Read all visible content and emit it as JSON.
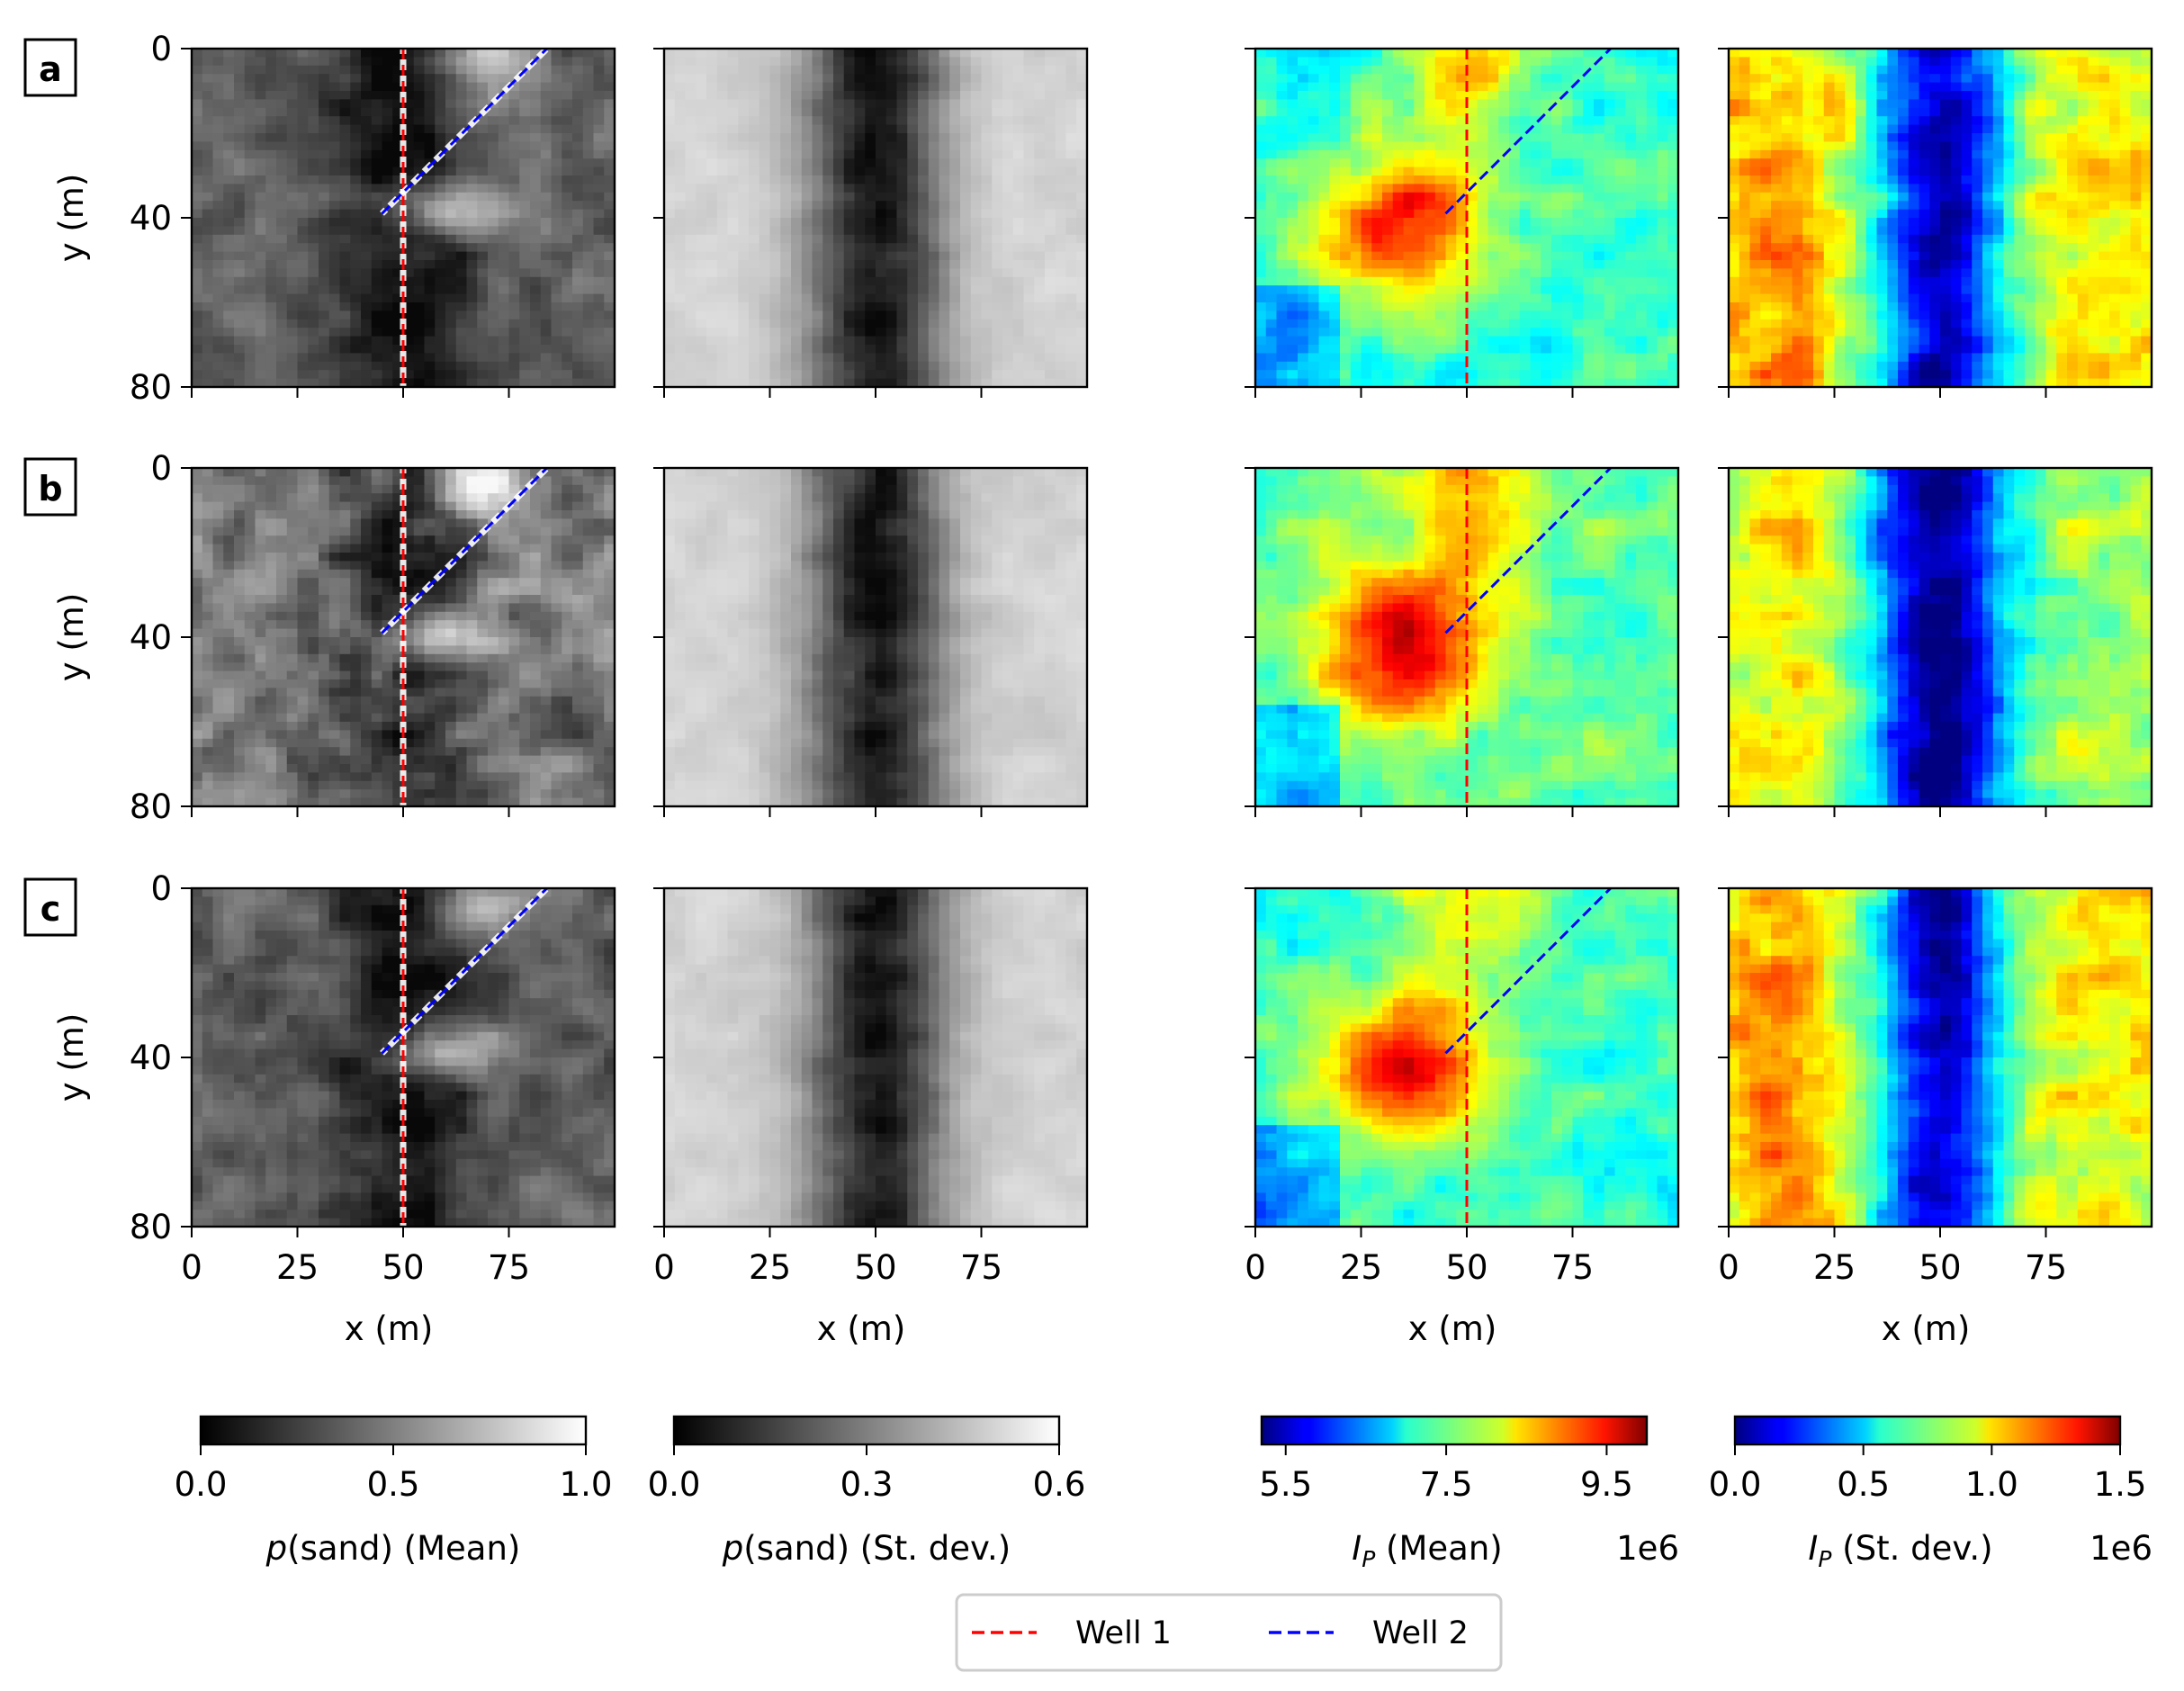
{
  "figure": {
    "rows": [
      {
        "label": "a"
      },
      {
        "label": "b"
      },
      {
        "label": "c"
      }
    ],
    "x_axis": {
      "label": "x (m)",
      "ticks": [
        0,
        25,
        50,
        75
      ],
      "range": [
        0,
        100
      ]
    },
    "y_axis": {
      "label": "y (m)",
      "ticks": [
        0,
        40,
        80
      ],
      "range": [
        0,
        80
      ]
    },
    "panel_columns": [
      {
        "name": "p(sand) Mean",
        "colormap": "gray"
      },
      {
        "name": "p(sand) St. dev.",
        "colormap": "gray"
      },
      {
        "name": "IP Mean",
        "colormap": "jet"
      },
      {
        "name": "IP St. dev.",
        "colormap": "jet"
      }
    ],
    "colorbars": [
      {
        "label_italic": "p",
        "label_rest": "(sand) (Mean)",
        "ticks": [
          "0.0",
          "0.5",
          "1.0"
        ],
        "range": [
          0,
          1
        ],
        "colormap": "gray",
        "offset_text": ""
      },
      {
        "label_italic": "p",
        "label_rest": "(sand) (St. dev.)",
        "ticks": [
          "0.0",
          "0.3",
          "0.6"
        ],
        "range": [
          0,
          0.6
        ],
        "colormap": "gray",
        "offset_text": ""
      },
      {
        "label_italic": "I",
        "label_sub": "P",
        "label_rest": " (Mean)",
        "ticks": [
          "5.5",
          "7.5",
          "9.5"
        ],
        "range": [
          5.2,
          10.0
        ],
        "colormap": "jet",
        "offset_text": "1e6"
      },
      {
        "label_italic": "I",
        "label_sub": "P",
        "label_rest": " (St. dev.)",
        "ticks": [
          "0.0",
          "0.5",
          "1.0",
          "1.5"
        ],
        "range": [
          0,
          1.5
        ],
        "colormap": "jet",
        "offset_text": "1e6"
      }
    ],
    "legend": [
      {
        "name": "Well 1",
        "color": "#ff0000",
        "style": "dashed"
      },
      {
        "name": "Well 2",
        "color": "#0000ff",
        "style": "dashed"
      }
    ]
  },
  "chart_data": {
    "type": "heatmap",
    "wells": [
      {
        "name": "Well 1",
        "x": [
          50,
          50
        ],
        "y": [
          0,
          80
        ],
        "color": "#ff0000"
      },
      {
        "name": "Well 2",
        "x": [
          45,
          84
        ],
        "y": [
          39,
          0
        ],
        "color": "#0000ff"
      }
    ],
    "wells_drawn_on_columns": [
      0,
      2
    ],
    "rows": [
      "a",
      "b",
      "c"
    ]
  }
}
